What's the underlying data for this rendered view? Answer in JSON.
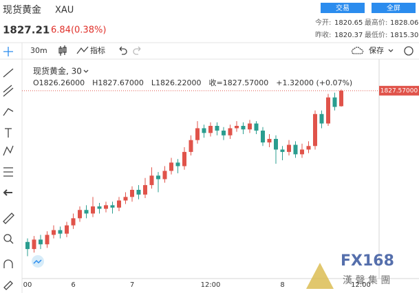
{
  "header": {
    "name": "现货黄金",
    "symbol": "XAU",
    "price": "1827.21",
    "change": "6.84(0.38%)",
    "buttons": [
      "交易",
      "全屏"
    ],
    "stats": [
      [
        "今开:",
        "1820.65",
        "最高价:",
        "1828.06"
      ],
      [
        "昨收:",
        "1820.37",
        "最低价:",
        "1815.30"
      ]
    ]
  },
  "toolbar": {
    "interval": "30m",
    "indicators": "指标",
    "save": "保存"
  },
  "chart_data": {
    "type": "candlestick",
    "title": "现货黄金, 30",
    "ohlc_text": [
      "O1826.26000",
      "H1827.67000",
      "L1826.22000",
      "收=1827.57000",
      "+1.32000 (+0.07%)"
    ],
    "last_label": "1827.57000",
    "categories": [
      "00",
      null,
      null,
      null,
      null,
      null,
      null,
      "6",
      null,
      null,
      null,
      null,
      null,
      null,
      null,
      null,
      "7",
      null,
      null,
      null,
      null,
      null,
      null,
      null,
      null,
      null,
      null,
      null,
      "12:00",
      null,
      null,
      null,
      null,
      null,
      null,
      null,
      null,
      null,
      null,
      "8",
      null,
      null,
      null,
      null,
      null,
      null,
      null,
      null,
      null,
      null,
      null,
      "12:00"
    ],
    "open": [
      1814.8,
      1814.2,
      1815.0,
      1814.6,
      1815.4,
      1815.8,
      1815.5,
      1816.2,
      1816.8,
      1817.5,
      1817.2,
      1817.8,
      1817.6,
      1817.9,
      1817.7,
      1818.3,
      1818.6,
      1819.2,
      1818.8,
      1819.6,
      1820.4,
      1820.1,
      1820.8,
      1821.5,
      1821.2,
      1822.4,
      1823.4,
      1824.4,
      1824.0,
      1824.6,
      1824.2,
      1823.8,
      1824.4,
      1824.6,
      1824.3,
      1824.8,
      1824.2,
      1823.2,
      1823.5,
      1822.6,
      1822.4,
      1823.0,
      1822.2,
      1822.6,
      1822.9,
      1825.6,
      1824.8,
      1827.0,
      1826.26,
      null,
      null,
      null
    ],
    "high": [
      1815.1,
      1815.3,
      1815.4,
      1815.7,
      1816.2,
      1816.1,
      1816.5,
      1817.2,
      1817.8,
      1817.9,
      1818.6,
      1818.1,
      1818.2,
      1818.2,
      1818.6,
      1819.0,
      1819.5,
      1819.6,
      1820.2,
      1821.1,
      1820.7,
      1821.2,
      1821.9,
      1821.8,
      1822.8,
      1823.8,
      1825.0,
      1824.7,
      1824.9,
      1824.9,
      1824.5,
      1824.7,
      1825.0,
      1824.9,
      1825.1,
      1825.0,
      1824.5,
      1823.9,
      1823.8,
      1822.9,
      1823.4,
      1823.3,
      1823.1,
      1823.3,
      1825.9,
      1825.9,
      1827.3,
      1827.4,
      1827.67,
      null,
      null,
      null
    ],
    "low": [
      1813.6,
      1813.9,
      1814.2,
      1814.3,
      1815.1,
      1815.1,
      1815.2,
      1815.9,
      1816.5,
      1816.8,
      1816.9,
      1817.2,
      1817.3,
      1817.2,
      1817.4,
      1818.0,
      1818.2,
      1818.4,
      1818.5,
      1819.3,
      1819.0,
      1819.8,
      1820.5,
      1820.6,
      1820.9,
      1822.1,
      1823.1,
      1823.6,
      1823.7,
      1823.8,
      1823.4,
      1823.5,
      1824.1,
      1823.9,
      1824.0,
      1823.9,
      1822.9,
      1822.8,
      1821.4,
      1821.7,
      1822.1,
      1821.9,
      1821.9,
      1822.3,
      1822.6,
      1824.4,
      1824.6,
      1825.9,
      1826.22,
      null,
      null,
      null
    ],
    "close": [
      1814.2,
      1815.0,
      1814.6,
      1815.4,
      1815.8,
      1815.5,
      1816.2,
      1816.8,
      1817.5,
      1817.2,
      1817.8,
      1817.6,
      1817.9,
      1817.7,
      1818.3,
      1818.6,
      1819.2,
      1818.8,
      1819.6,
      1820.4,
      1820.1,
      1820.8,
      1821.5,
      1821.2,
      1822.4,
      1823.4,
      1824.4,
      1824.0,
      1824.6,
      1824.2,
      1823.8,
      1824.4,
      1824.6,
      1824.3,
      1824.8,
      1824.2,
      1823.2,
      1823.5,
      1822.6,
      1822.4,
      1823.0,
      1822.2,
      1822.6,
      1822.9,
      1825.6,
      1824.8,
      1827.0,
      1826.2,
      1827.57,
      null,
      null,
      null
    ],
    "ylim": [
      1812,
      1830
    ],
    "up_color": "#e0534a",
    "down_color": "#2a9d8f"
  },
  "watermark": {
    "logo": "FX168",
    "company": "漢 聲 集 團"
  }
}
